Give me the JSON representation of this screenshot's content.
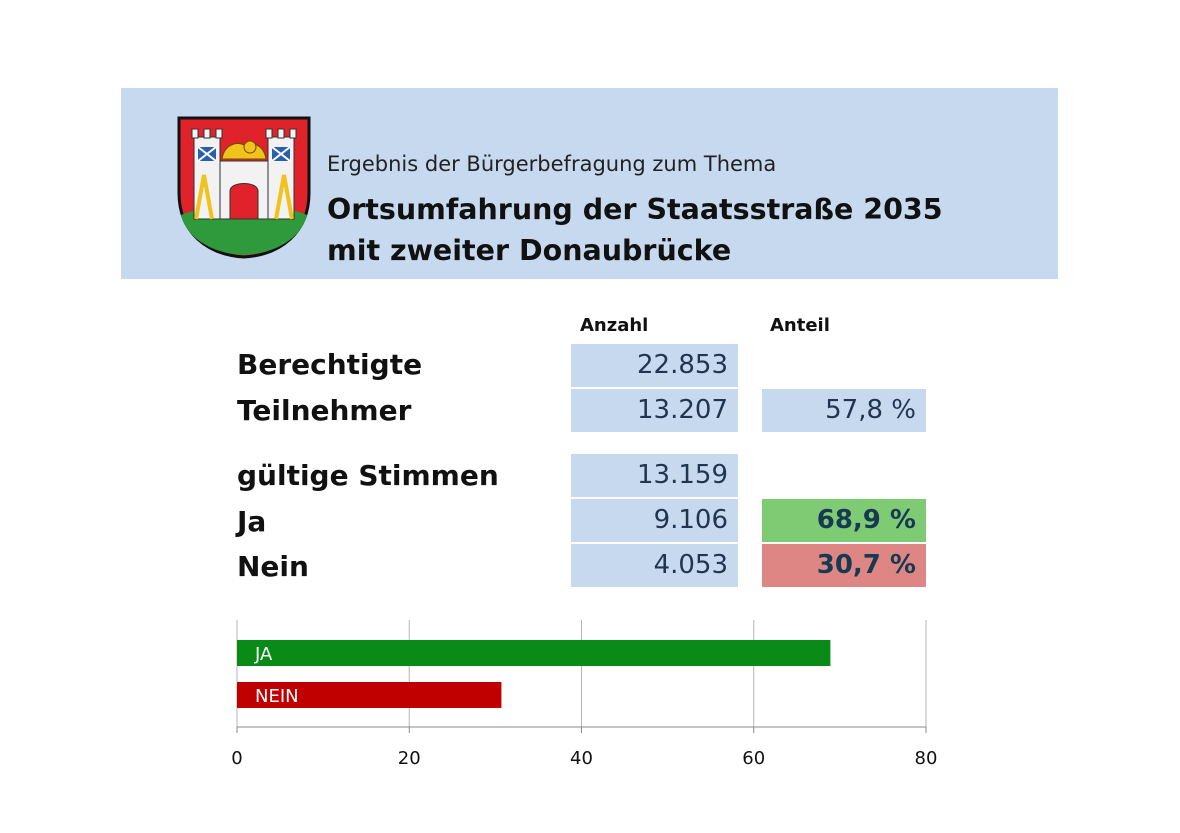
{
  "header": {
    "subtitle": "Ergebnis der Bürgerbefragung zum Thema",
    "title_line1": "Ortsumfahrung der Staatsstraße 2035",
    "title_line2": "mit zweiter Donaubrücke",
    "background_color": "#c6d9ef"
  },
  "crest": {
    "icon": "coat-of-arms-icon",
    "colors": {
      "red": "#e0222a",
      "green": "#2f9a3c",
      "blue": "#2a5fb0",
      "gold": "#f0c21b"
    }
  },
  "table": {
    "col_count": "Anzahl",
    "col_share": "Anteil",
    "rows": [
      {
        "label": "Berechtigte",
        "count": "22.853",
        "share": ""
      },
      {
        "label": "Teilnehmer",
        "count": "13.207",
        "share": "57,8 %"
      },
      {
        "label": "gültige Stimmen",
        "count": "13.159",
        "share": ""
      },
      {
        "label": "Ja",
        "count": "9.106",
        "share": "68,9 %"
      },
      {
        "label": "Nein",
        "count": "4.053",
        "share": "30,7 %"
      }
    ],
    "colors": {
      "cell": "#c6d9ef",
      "yes": "#7fcb74",
      "no": "#dd8684"
    }
  },
  "chart_data": {
    "type": "bar",
    "orientation": "horizontal",
    "categories": [
      "JA",
      "NEIN"
    ],
    "values": [
      68.9,
      30.7
    ],
    "colors": [
      "#0a8a17",
      "#c00000"
    ],
    "xlim": [
      0,
      80
    ],
    "x_ticks": [
      0,
      20,
      40,
      60,
      80
    ],
    "grid": true,
    "title": "",
    "xlabel": "",
    "ylabel": ""
  }
}
